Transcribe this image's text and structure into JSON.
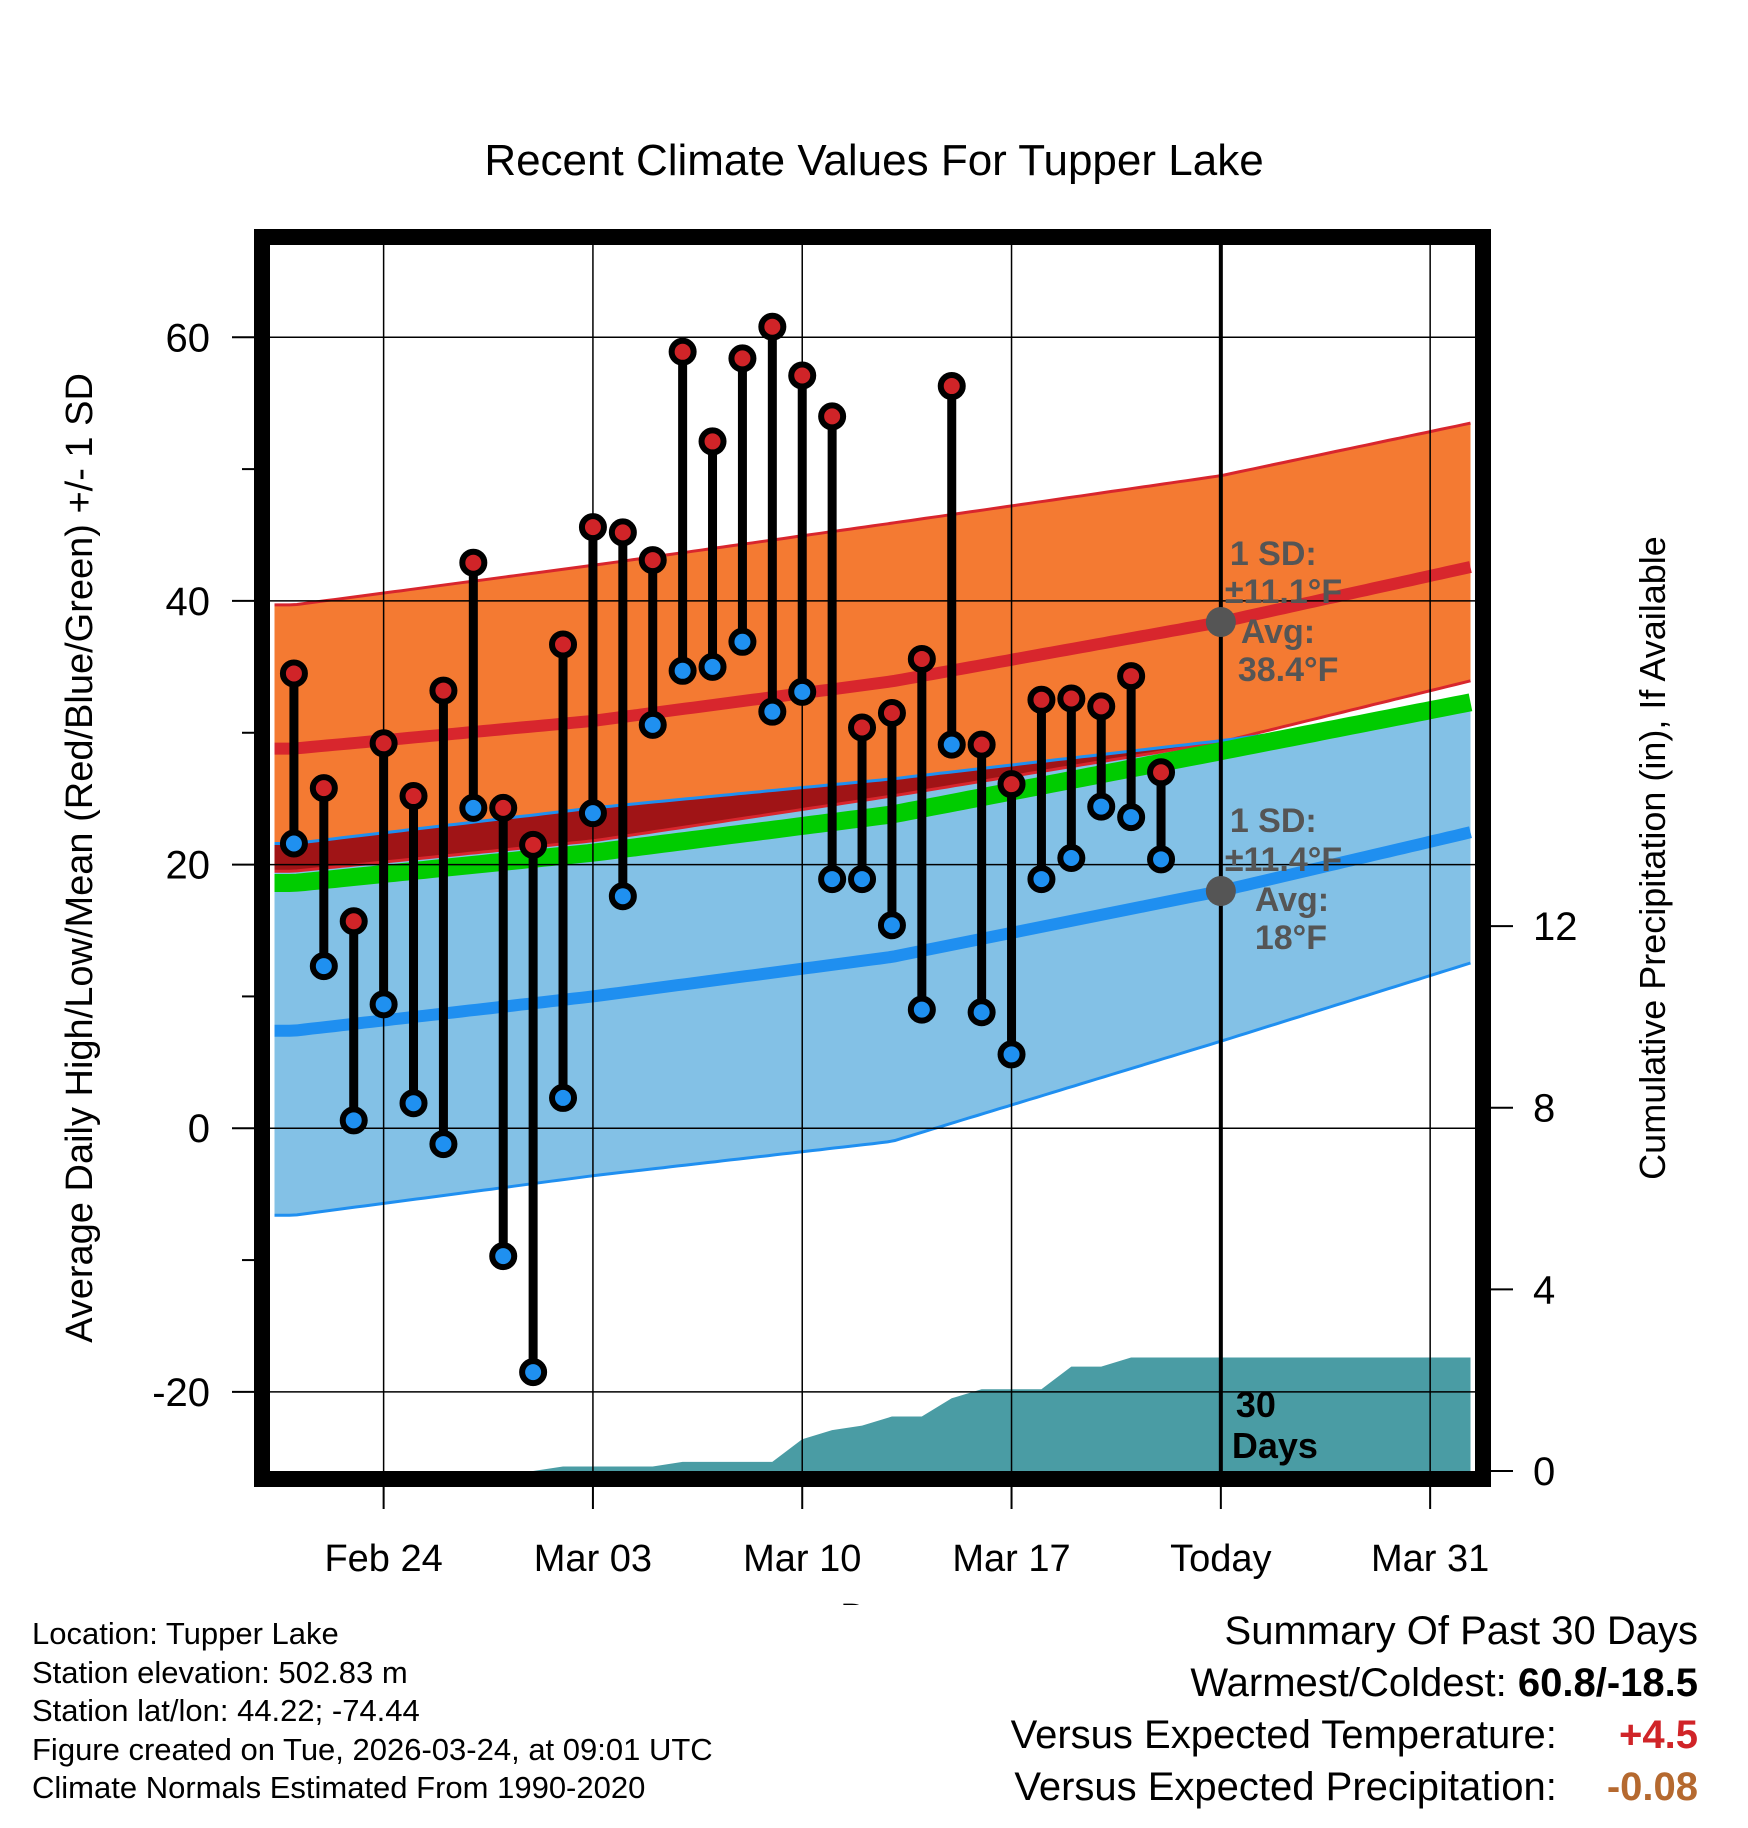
{
  "chart_data": {
    "type": "line",
    "title": "Recent Climate Values For Tupper Lake",
    "xlabel": "Day",
    "ylabel": "Average Daily High/Low/Mean (Red/Blue/Green) +/- 1 SD",
    "ylabel_right": "Cumulative Precipitation (in), If Available",
    "x_tick_labels": [
      "Feb 24",
      "Mar 03",
      "Mar 10",
      "Mar 17",
      "Today",
      "Mar 31"
    ],
    "x_tick_days": [
      3,
      10,
      17,
      24,
      31,
      38
    ],
    "xlim": [
      -0.8,
      39.5
    ],
    "ylim": [
      -26,
      67
    ],
    "y_ticks": [
      -20,
      0,
      20,
      40,
      60
    ],
    "y_minor_ticks": [
      -10,
      10,
      30,
      50
    ],
    "precip_axis": {
      "range": [
        0,
        27
      ],
      "ticks": [
        0,
        4,
        8,
        12
      ]
    },
    "observed": {
      "days": [
        0,
        1,
        2,
        3,
        4,
        5,
        6,
        7,
        8,
        9,
        10,
        11,
        12,
        13,
        14,
        15,
        16,
        17,
        18,
        19,
        20,
        21,
        22,
        23,
        24,
        25,
        26,
        27,
        28,
        29
      ],
      "high": [
        34.5,
        25.8,
        15.7,
        29.2,
        25.2,
        33.2,
        42.9,
        24.3,
        21.5,
        36.7,
        45.6,
        45.2,
        43.1,
        58.9,
        52.1,
        58.4,
        60.8,
        57.1,
        54.0,
        30.4,
        31.5,
        35.6,
        56.3,
        29.1,
        26.1,
        32.5,
        32.6,
        32.0,
        34.3,
        27.0
      ],
      "low": [
        21.6,
        12.3,
        0.6,
        9.4,
        1.9,
        -1.2,
        24.3,
        -9.7,
        -18.5,
        2.3,
        23.9,
        17.6,
        30.6,
        34.7,
        35.0,
        36.9,
        31.6,
        33.1,
        18.9,
        18.9,
        15.4,
        9.0,
        29.1,
        8.8,
        5.6,
        18.9,
        20.5,
        24.4,
        23.6,
        20.4
      ]
    },
    "normals": {
      "days": [
        0,
        10,
        20,
        31,
        40
      ],
      "avg_high": [
        28.8,
        30.9,
        33.9,
        38.4,
        42.9
      ],
      "high_sd_upper": [
        39.7,
        42.7,
        45.9,
        49.5,
        53.8
      ],
      "high_sd_lower": [
        19.5,
        21.8,
        25.2,
        29.3,
        34.3
      ],
      "avg_low": [
        7.4,
        10.0,
        13.0,
        18.0,
        22.8
      ],
      "low_sd_upper": [
        21.6,
        24.3,
        26.5,
        29.4,
        32.0
      ],
      "low_sd_lower": [
        -6.6,
        -3.6,
        -1.0,
        6.6,
        13.0
      ],
      "avg_mean": [
        18.6,
        20.9,
        23.8,
        28.6,
        32.6
      ]
    },
    "precip_cumulative": {
      "days": [
        0,
        1,
        2,
        3,
        4,
        5,
        6,
        7,
        8,
        9,
        10,
        11,
        12,
        13,
        14,
        15,
        16,
        17,
        18,
        19,
        20,
        21,
        22,
        23,
        24,
        25,
        26,
        27,
        28,
        29,
        30,
        31,
        40
      ],
      "values": [
        0,
        0,
        0,
        0,
        0,
        0,
        0,
        0,
        0,
        0.1,
        0.1,
        0.1,
        0.1,
        0.2,
        0.2,
        0.2,
        0.2,
        0.7,
        0.9,
        1.0,
        1.2,
        1.2,
        1.6,
        1.8,
        1.8,
        1.8,
        2.3,
        2.3,
        2.5,
        2.5,
        2.5,
        2.5,
        2.5
      ]
    },
    "annotations": {
      "high_sd_line1": "1 SD:",
      "high_sd_line2": "±11.1°F",
      "high_avg_line1": "Avg:",
      "high_avg_line2": "38.4°F",
      "low_sd_line1": "1 SD:",
      "low_sd_line2": "±11.4°F",
      "low_avg_line1": "Avg:",
      "low_avg_line2": "18°F",
      "window_line1": "30",
      "window_line2": "Days"
    },
    "colors": {
      "high_band": "#f47a32",
      "high_line": "#d8262d",
      "low_band": "#83c1e6",
      "low_line": "#1f8ff0",
      "mean_band": "#00cc00",
      "overlap": "#a01416",
      "precip": "#4a9ca4",
      "high_marker": "#d02428",
      "low_marker": "#1f90f0",
      "annotation": "#555555"
    }
  },
  "info": {
    "location": "Location: Tupper Lake",
    "elevation": "Station elevation: 502.83 m",
    "latlon": "Station lat/lon: 44.22; -74.44",
    "created": "Figure created on Tue, 2026-03-24, at 09:01 UTC",
    "normals": "Climate Normals Estimated From 1990-2020"
  },
  "summary": {
    "title": "Summary Of Past 30 Days",
    "warm_cold_label": "Warmest/Coldest:",
    "warm_cold_value": "60.8/-18.5",
    "temp_label": "Versus Expected Temperature:",
    "temp_value": "+4.5",
    "temp_color": "#d02428",
    "precip_label": "Versus Expected Precipitation:",
    "precip_value": "-0.08",
    "precip_color": "#b5692f"
  }
}
